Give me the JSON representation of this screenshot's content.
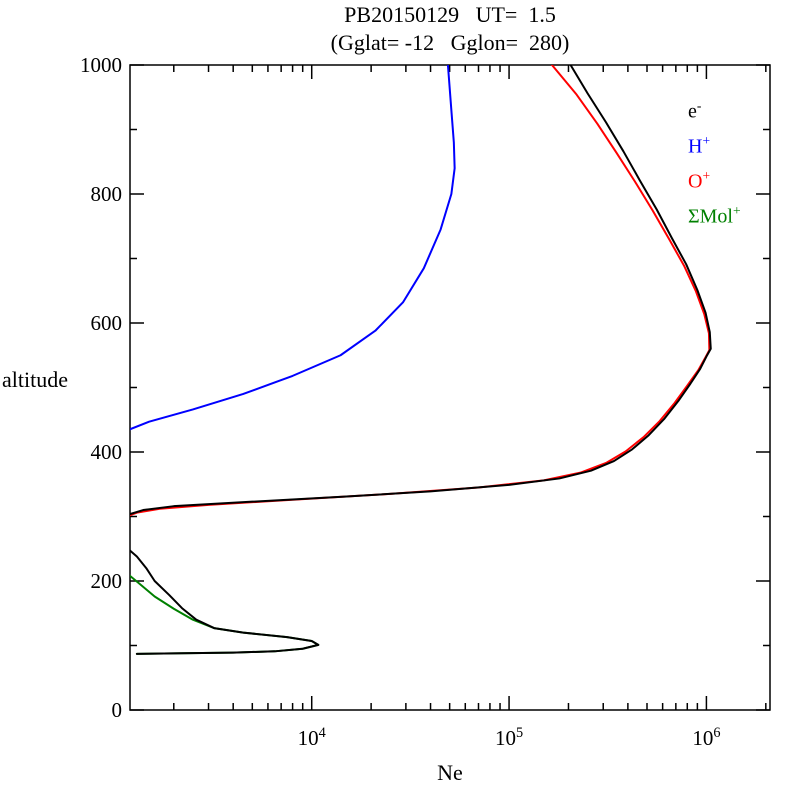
{
  "title": {
    "line1": "PB20150129   UT=  1.5",
    "line2": "(Gglat= -12   Gglon=  280)"
  },
  "legend": {
    "items": [
      {
        "base": "e",
        "sup": "-",
        "color": "#000000",
        "name": "electron"
      },
      {
        "base": "H",
        "sup": "+",
        "color": "#0000ff",
        "name": "hydrogen-ion"
      },
      {
        "base": "O",
        "sup": "+",
        "color": "#ff0000",
        "name": "oxygen-ion"
      },
      {
        "base": "ΣMol",
        "sup": "+",
        "color": "#008000",
        "name": "molecular-ions"
      }
    ]
  },
  "chart_data": {
    "type": "line",
    "title": "PB20150129  UT= 1.5",
    "subtitle": "(Gglat= -12  Gglon= 280)",
    "xlabel": "Ne",
    "ylabel": "altitude",
    "x_scale": "log",
    "xlim": [
      1200,
      2100000
    ],
    "ylim": [
      0,
      1000
    ],
    "x_major_ticks": [
      {
        "value": 10000,
        "base": "10",
        "sup": "4"
      },
      {
        "value": 100000,
        "base": "10",
        "sup": "5"
      },
      {
        "value": 1000000,
        "base": "10",
        "sup": "6"
      }
    ],
    "y_major_ticks": [
      0,
      200,
      400,
      600,
      800,
      1000
    ],
    "y_minor_step": 100,
    "grid": false,
    "legend_position": "upper-right-inside",
    "series": [
      {
        "name": "SigmaMol+",
        "color": "#008000",
        "points": [
          [
            1300,
            87
          ],
          [
            2200,
            88
          ],
          [
            4000,
            89
          ],
          [
            6500,
            91
          ],
          [
            9000,
            95
          ],
          [
            10800,
            101
          ],
          [
            10000,
            107
          ],
          [
            7500,
            113
          ],
          [
            4500,
            120
          ],
          [
            3200,
            127
          ],
          [
            2500,
            140
          ],
          [
            2000,
            157
          ],
          [
            1600,
            176
          ],
          [
            1350,
            195
          ],
          [
            1200,
            208
          ],
          [
            1080,
            218
          ]
        ]
      },
      {
        "name": "H+",
        "color": "#0000ff",
        "points": [
          [
            1150,
            433
          ],
          [
            1500,
            447
          ],
          [
            2500,
            466
          ],
          [
            4500,
            490
          ],
          [
            8000,
            518
          ],
          [
            14000,
            550
          ],
          [
            21000,
            588
          ],
          [
            29000,
            632
          ],
          [
            37000,
            685
          ],
          [
            45000,
            745
          ],
          [
            51000,
            800
          ],
          [
            53000,
            840
          ],
          [
            52500,
            880
          ],
          [
            51000,
            930
          ],
          [
            49000,
            1000
          ]
        ]
      },
      {
        "name": "O+",
        "color": "#ff0000",
        "points": [
          [
            1150,
            300
          ],
          [
            1300,
            306
          ],
          [
            1700,
            312
          ],
          [
            3000,
            318
          ],
          [
            8000,
            326
          ],
          [
            25000,
            335
          ],
          [
            70000,
            345
          ],
          [
            150000,
            356
          ],
          [
            230000,
            368
          ],
          [
            310000,
            383
          ],
          [
            390000,
            401
          ],
          [
            480000,
            423
          ],
          [
            580000,
            448
          ],
          [
            690000,
            476
          ],
          [
            800000,
            503
          ],
          [
            910000,
            527
          ],
          [
            990000,
            547
          ],
          [
            1035000,
            558
          ],
          [
            1030000,
            584
          ],
          [
            975000,
            614
          ],
          [
            885000,
            649
          ],
          [
            770000,
            689
          ],
          [
            650000,
            729
          ],
          [
            535000,
            774
          ],
          [
            435000,
            819
          ],
          [
            350000,
            864
          ],
          [
            280000,
            909
          ],
          [
            220000,
            954
          ],
          [
            165000,
            1000
          ]
        ]
      },
      {
        "name": "e-",
        "color": "#000000",
        "points": [
          [
            1300,
            87
          ],
          [
            2200,
            88
          ],
          [
            4000,
            89
          ],
          [
            6500,
            91
          ],
          [
            9000,
            95
          ],
          [
            10800,
            101
          ],
          [
            10000,
            107
          ],
          [
            7500,
            113
          ],
          [
            4500,
            120
          ],
          [
            3200,
            127
          ],
          [
            2600,
            140
          ],
          [
            2200,
            158
          ],
          [
            1900,
            178
          ],
          [
            1600,
            200
          ],
          [
            1450,
            220
          ],
          [
            1300,
            238
          ],
          [
            1150,
            252
          ],
          [
            950,
            262
          ],
          [
            850,
            275
          ],
          [
            950,
            290
          ],
          [
            1150,
            302
          ],
          [
            1400,
            310
          ],
          [
            2000,
            316
          ],
          [
            5000,
            323
          ],
          [
            15000,
            331
          ],
          [
            40000,
            339
          ],
          [
            100000,
            349
          ],
          [
            180000,
            359
          ],
          [
            260000,
            371
          ],
          [
            340000,
            386
          ],
          [
            420000,
            404
          ],
          [
            510000,
            426
          ],
          [
            610000,
            451
          ],
          [
            720000,
            479
          ],
          [
            830000,
            506
          ],
          [
            930000,
            529
          ],
          [
            1000000,
            548
          ],
          [
            1052000,
            560
          ],
          [
            1040000,
            586
          ],
          [
            990000,
            616
          ],
          [
            900000,
            651
          ],
          [
            790000,
            691
          ],
          [
            670000,
            731
          ],
          [
            560000,
            776
          ],
          [
            460000,
            821
          ],
          [
            380000,
            866
          ],
          [
            310000,
            911
          ],
          [
            250000,
            956
          ],
          [
            205000,
            1000
          ]
        ]
      }
    ]
  }
}
